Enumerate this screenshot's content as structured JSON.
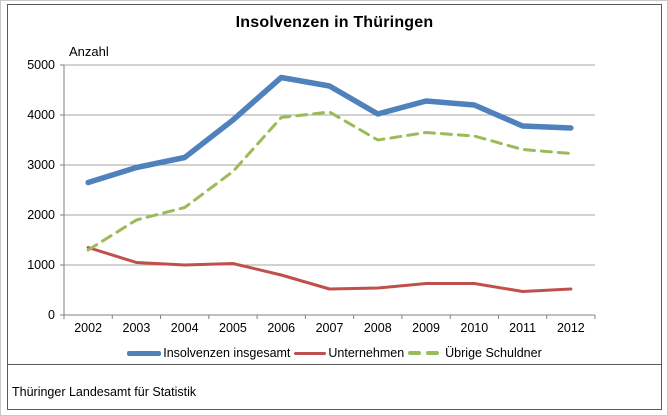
{
  "chart": {
    "title": "Insolvenzen in Thüringen",
    "axis_unit_label": "Anzahl",
    "source": "Thüringer Landesamt für Statistik"
  },
  "chart_data": {
    "type": "line",
    "title": "Insolvenzen in Thüringen",
    "ylabel": "Anzahl",
    "xlabel": "",
    "categories": [
      "2002",
      "2003",
      "2004",
      "2005",
      "2006",
      "2007",
      "2008",
      "2009",
      "2010",
      "2011",
      "2012"
    ],
    "series": [
      {
        "name": "Insolvenzen insgesamt",
        "color": "#4F81BD",
        "style": "solid",
        "stroke_width": 5.5,
        "values": [
          2650,
          2950,
          3150,
          3900,
          4750,
          4580,
          4020,
          4280,
          4200,
          3780,
          3740
        ]
      },
      {
        "name": "Unternehmen",
        "color": "#C0504D",
        "style": "solid",
        "stroke_width": 3,
        "values": [
          1350,
          1050,
          1000,
          1030,
          800,
          520,
          540,
          630,
          630,
          470,
          520
        ]
      },
      {
        "name": "Übrige Schuldner",
        "color": "#9BBB59",
        "style": "dashed",
        "stroke_width": 3,
        "values": [
          1300,
          1900,
          2150,
          2870,
          3950,
          4060,
          3500,
          3650,
          3580,
          3310,
          3230
        ]
      }
    ],
    "ylim": [
      0,
      5000
    ],
    "ytick_step": 1000,
    "yticks": [
      0,
      1000,
      2000,
      3000,
      4000,
      5000
    ],
    "grid": true,
    "legend_position": "bottom",
    "axis_color": "#808080",
    "gridline_color": "#A6A6A6",
    "source": "Thüringer Landesamt für Statistik"
  }
}
